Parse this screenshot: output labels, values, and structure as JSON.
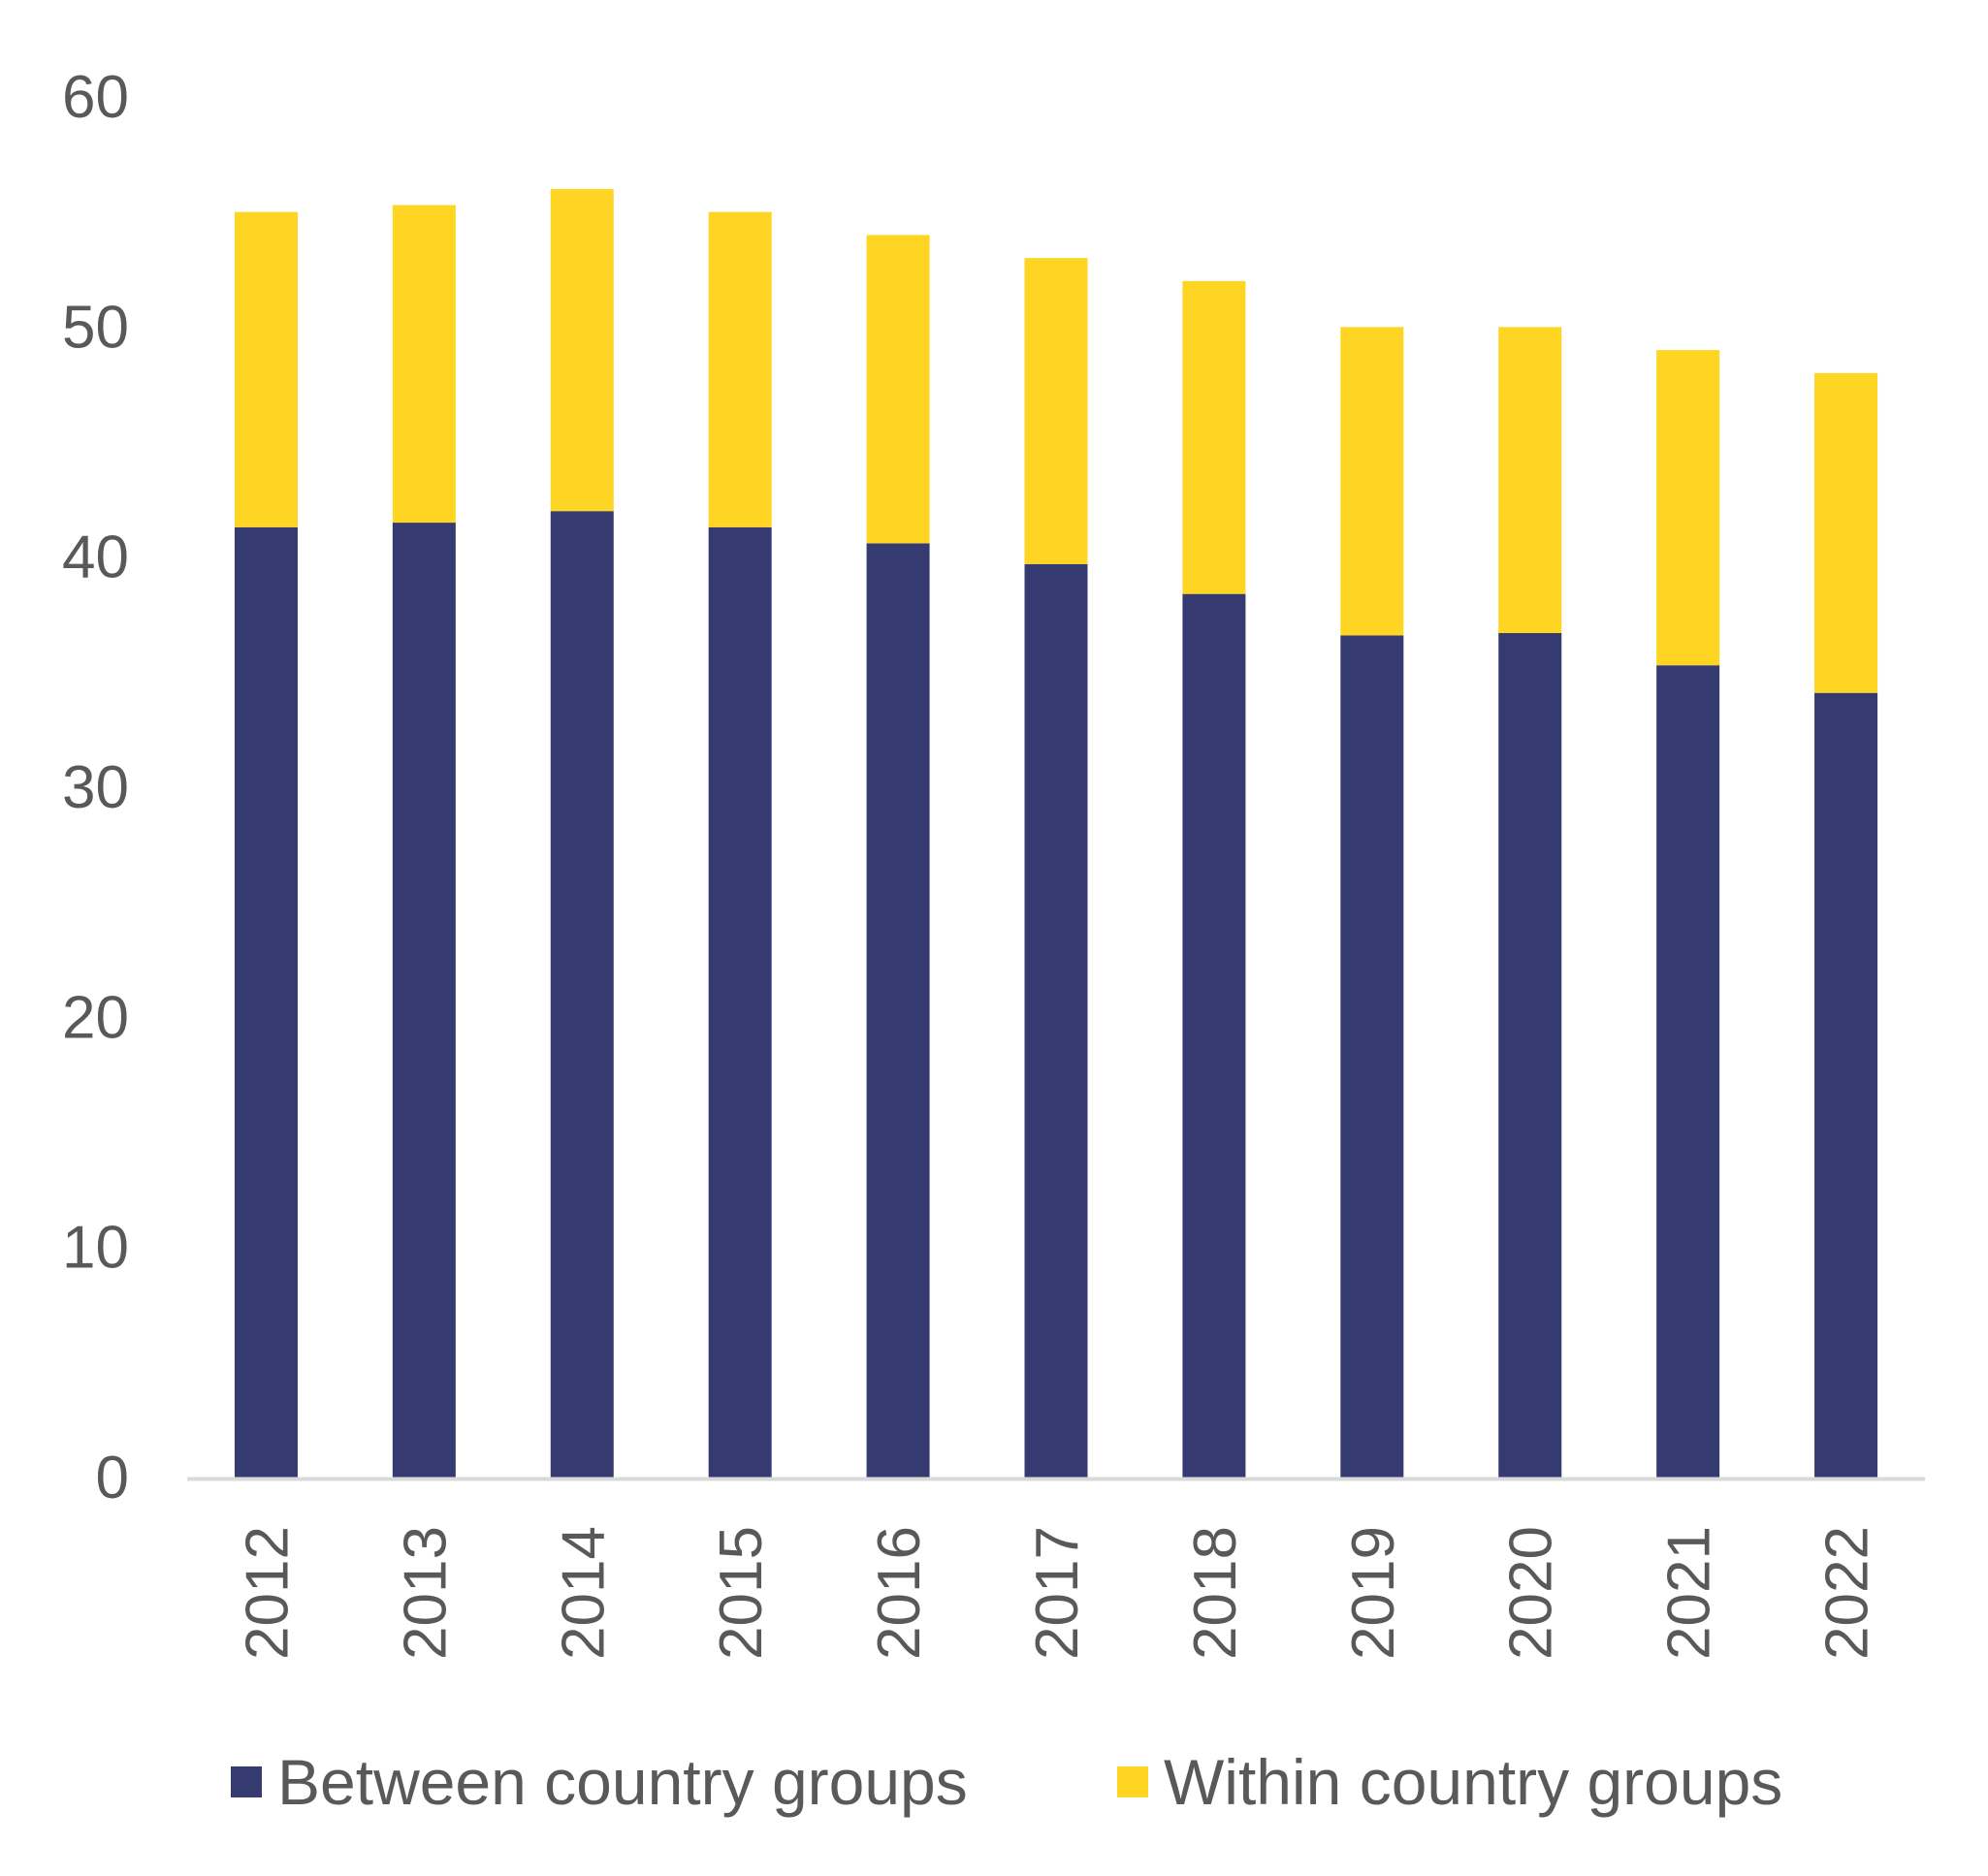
{
  "chart_data": {
    "type": "bar",
    "stacked": true,
    "title": "",
    "xlabel": "",
    "ylabel": "",
    "ylim": [
      0,
      60
    ],
    "yticks": [
      0,
      10,
      20,
      30,
      40,
      50,
      60
    ],
    "grid": false,
    "legend_position": "bottom",
    "categories": [
      "2012",
      "2013",
      "2014",
      "2015",
      "2016",
      "2017",
      "2018",
      "2019",
      "2020",
      "2021",
      "2022"
    ],
    "series": [
      {
        "name": "Between country groups",
        "color": "#353b70",
        "values": [
          41.3,
          41.5,
          42.0,
          41.3,
          40.6,
          39.7,
          38.4,
          36.6,
          36.7,
          35.3,
          34.1
        ]
      },
      {
        "name": "Within country groups",
        "color": "#fdd522",
        "values": [
          13.7,
          13.8,
          14.0,
          13.7,
          13.4,
          13.3,
          13.6,
          13.4,
          13.3,
          13.7,
          13.9
        ]
      }
    ]
  }
}
